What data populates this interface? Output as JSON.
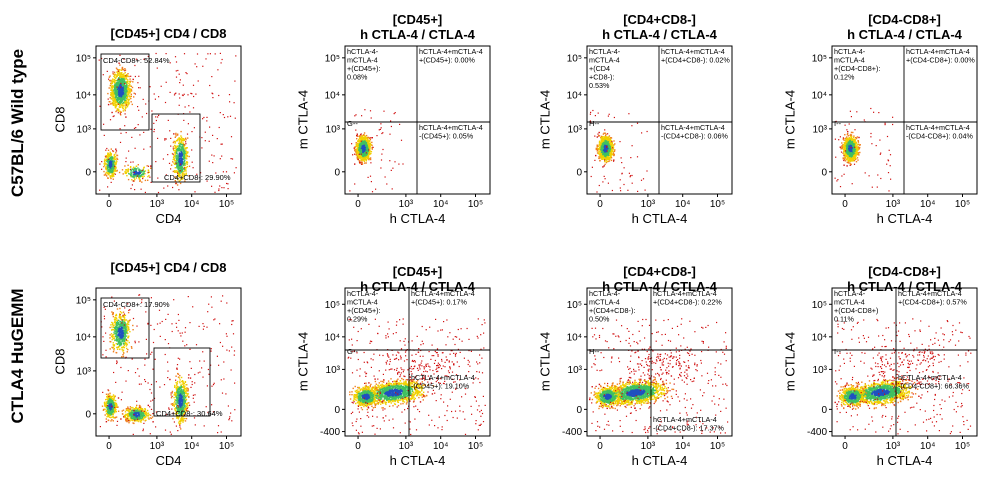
{
  "row_labels": [
    "C57BL/6 Wild type",
    "CTLA4 HuGEMM"
  ],
  "colors": {
    "density_low": "#d01010",
    "density_mid": "#f0d000",
    "density_mid2": "#40c060",
    "density_high": "#2050c0",
    "gate": "#000000"
  },
  "chart_data": [
    {
      "type": "scatter",
      "row": 0,
      "col": 0,
      "style": "cd4cd8",
      "title": [
        "[CD45+] CD4 / CD8"
      ],
      "xlabel": "CD4",
      "ylabel": "CD8",
      "xticks": [
        "0",
        "10³",
        "10⁴",
        "10⁵"
      ],
      "yticks": [
        "0",
        "10³",
        "10⁴",
        "10⁵"
      ],
      "gates": [
        {
          "name": "CD4-CD8+",
          "label": "CD4-CD8+: 52.84%",
          "value": 52.84
        },
        {
          "name": "CD4+CD8-",
          "label": "CD4+CD8-: 29.90%",
          "value": 29.9
        }
      ]
    },
    {
      "type": "scatter",
      "row": 0,
      "col": 1,
      "style": "tight",
      "title": [
        "[CD45+]",
        "h CTLA-4 / CTLA-4"
      ],
      "xlabel": "h CTLA-4",
      "ylabel": "m CTLA-4",
      "xticks": [
        "0",
        "10³",
        "10⁴",
        "10⁵"
      ],
      "yticks": [
        "0",
        "10³",
        "10⁴",
        "10⁵"
      ],
      "gate_marker": "G--",
      "quadrants": [
        {
          "q": "UL",
          "label": [
            "hCTLA-4-",
            "mCTLA-4",
            "+(CD45+):",
            "0.08%"
          ],
          "value": 0.08
        },
        {
          "q": "UR",
          "label": [
            "hCTLA-4+mCTLA-4",
            "+(CD45+): 0.00%"
          ],
          "value": 0.0
        },
        {
          "q": "LR",
          "label": [
            "hCTLA-4+mCTLA-4",
            "-(CD45+): 0.05%"
          ],
          "value": 0.05
        }
      ]
    },
    {
      "type": "scatter",
      "row": 0,
      "col": 2,
      "style": "tight",
      "title": [
        "[CD4+CD8-]",
        "h CTLA-4 / CTLA-4"
      ],
      "xlabel": "h CTLA-4",
      "ylabel": "m CTLA-4",
      "xticks": [
        "0",
        "10³",
        "10⁴",
        "10⁵"
      ],
      "yticks": [
        "0",
        "10³",
        "10⁴",
        "10⁵"
      ],
      "gate_marker": "H--",
      "quadrants": [
        {
          "q": "UL",
          "label": [
            "hCTLA-4-",
            "mCTLA-4",
            "+(CD4",
            "+CD8-):",
            "0.53%"
          ],
          "value": 0.53
        },
        {
          "q": "UR",
          "label": [
            "hCTLA-4+mCTLA-4",
            "+(CD4+CD8-): 0.02%"
          ],
          "value": 0.02
        },
        {
          "q": "LR",
          "label": [
            "hCTLA-4+mCTLA-4",
            "-(CD4+CD8-): 0.06%"
          ],
          "value": 0.06
        }
      ]
    },
    {
      "type": "scatter",
      "row": 0,
      "col": 3,
      "style": "tight",
      "title": [
        "[CD4-CD8+]",
        "h CTLA-4 / CTLA-4"
      ],
      "xlabel": "h CTLA-4",
      "ylabel": "m CTLA-4",
      "xticks": [
        "0",
        "10³",
        "10⁴",
        "10⁵"
      ],
      "yticks": [
        "0",
        "10³",
        "10⁴",
        "10⁵"
      ],
      "gate_marker": "I--",
      "quadrants": [
        {
          "q": "UL",
          "label": [
            "hCTLA-4-",
            "mCTLA-4",
            "+(CD4-CD8+):",
            "0.12%"
          ],
          "value": 0.12
        },
        {
          "q": "UR",
          "label": [
            "hCTLA-4+mCTLA-4",
            "+(CD4-CD8+): 0.00%"
          ],
          "value": 0.0
        },
        {
          "q": "LR",
          "label": [
            "hCTLA-4+mCTLA-4",
            "-(CD4-CD8+): 0.04%"
          ],
          "value": 0.04
        }
      ]
    },
    {
      "type": "scatter",
      "row": 1,
      "col": 0,
      "style": "cd4cd8b",
      "title": [
        "[CD45+] CD4 / CD8"
      ],
      "xlabel": "CD4",
      "ylabel": "CD8",
      "xticks": [
        "0",
        "10³",
        "10⁴",
        "10⁵"
      ],
      "yticks": [
        "0",
        "10³",
        "10⁴",
        "10⁵"
      ],
      "gates": [
        {
          "name": "CD4-CD8+",
          "label": "CD4-CD8+: 17.90%",
          "value": 17.9
        },
        {
          "name": "CD4+CD8-",
          "label": "CD4+CD8-: 30.64%",
          "value": 30.64
        }
      ]
    },
    {
      "type": "scatter",
      "row": 1,
      "col": 1,
      "style": "spread",
      "title": [
        "[CD45+]",
        "h CTLA-4 / CTLA-4"
      ],
      "xlabel": "h CTLA-4",
      "ylabel": "m CTLA-4",
      "xticks": [
        "0",
        "10³",
        "10⁴",
        "10⁵"
      ],
      "yticks": [
        "-400",
        "0",
        "10³",
        "10⁴",
        "10⁵"
      ],
      "gate_marker": "G--",
      "quadrants": [
        {
          "q": "UL",
          "label": [
            "hCTLA-4-",
            "mCTLA-4",
            "+(CD45+):",
            "0.29%"
          ],
          "value": 0.29
        },
        {
          "q": "UR",
          "label": [
            "hCTLA-4+mCTLA-4",
            "+(CD45+): 0.17%"
          ],
          "value": 0.17
        },
        {
          "q": "LR",
          "label": [
            "hCTLA-4+mCTLA-4",
            "-(CD45+): 19.10%"
          ],
          "value": 19.1
        }
      ]
    },
    {
      "type": "scatter",
      "row": 1,
      "col": 2,
      "style": "spread",
      "title": [
        "[CD4+CD8-]",
        "h CTLA-4 / CTLA-4"
      ],
      "xlabel": "h CTLA-4",
      "ylabel": "m CTLA-4",
      "xticks": [
        "0",
        "10³",
        "10⁴",
        "10⁵"
      ],
      "yticks": [
        "-400",
        "0",
        "10³",
        "10⁴",
        "10⁵"
      ],
      "gate_marker": "H--",
      "quadrants": [
        {
          "q": "UL",
          "label": [
            "hCTLA-4-",
            "mCTLA-4",
            "+(CD4+CD8-):",
            "0.50%"
          ],
          "value": 0.5
        },
        {
          "q": "UR",
          "label": [
            "hCTLA-4+mCTLA-4",
            "+(CD4+CD8-): 0.22%"
          ],
          "value": 0.22
        },
        {
          "q": "LR",
          "label": [
            "hCTLA-4+mCTLA-4",
            "-(CD4+CD8-): 17.37%"
          ],
          "value": 17.37
        }
      ]
    },
    {
      "type": "scatter",
      "row": 1,
      "col": 3,
      "style": "spread",
      "title": [
        "[CD4-CD8+]",
        "h CTLA-4 / CTLA-4"
      ],
      "xlabel": "h CTLA-4",
      "ylabel": "m CTLA-4",
      "xticks": [
        "0",
        "10³",
        "10⁴",
        "10⁵"
      ],
      "yticks": [
        "-400",
        "0",
        "10³",
        "10⁴",
        "10⁵"
      ],
      "gate_marker": "I--",
      "quadrants": [
        {
          "q": "UL",
          "label": [
            "hCTLA-4-",
            "mCTLA-4",
            "+(CD4-CD8+)",
            "0.11%"
          ],
          "value": 0.11
        },
        {
          "q": "UR",
          "label": [
            "hCTLA-4+mCTLA-4",
            "+(CD4-CD8+): 0.57%"
          ],
          "value": 0.57
        },
        {
          "q": "LR",
          "label": [
            "hCTLA-4+mCTLA-4",
            "-(CD4-CD8+): 66.36%"
          ],
          "value": 66.36
        }
      ]
    }
  ]
}
